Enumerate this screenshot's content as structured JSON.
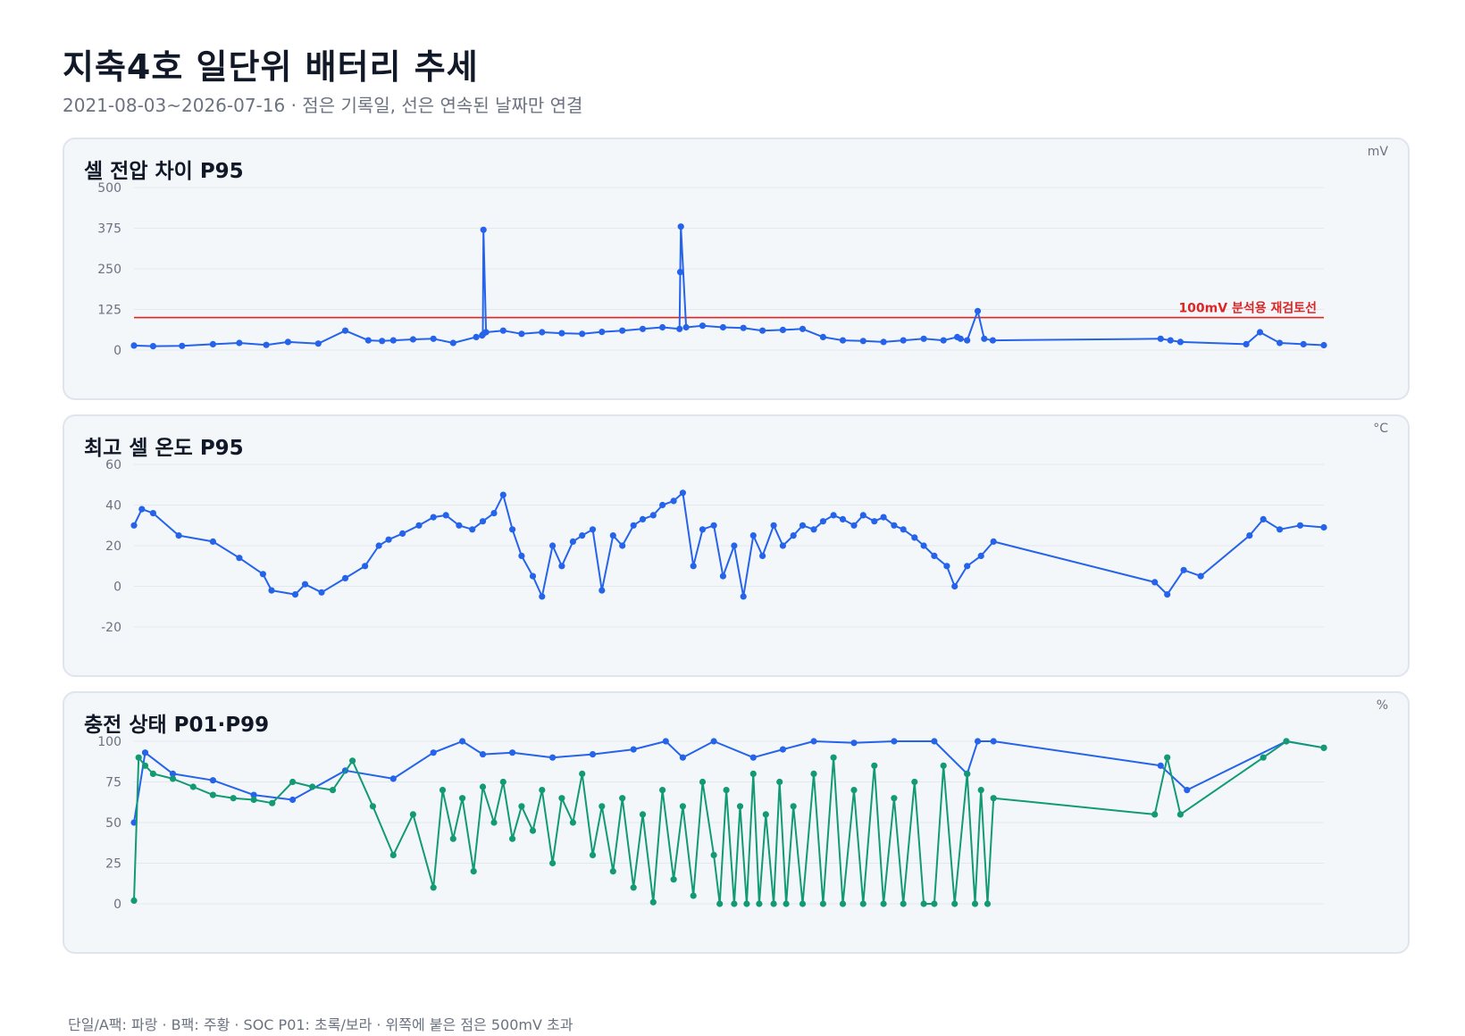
{
  "title": "지축4호 일단위 배터리 추세",
  "subtitle": "2021-08-03~2026-07-16 · 점은 기록일, 선은 연속된 날짜만 연결",
  "footer": "단일/A팩: 파랑 · B팩: 주황 · SOC P01: 초록/보라 · 위쪽에 붙은 점은 500mV 초과",
  "colors": {
    "blue": "#2563eb",
    "green": "#129a74",
    "red": "#dc2626",
    "grid": "#e3e8ee",
    "tick": "#6b7280"
  },
  "chart_data": [
    {
      "type": "line",
      "title": "셀 전압 차이 P95",
      "unit": "mV",
      "x_range": [
        "2021-08-03",
        "2026-07-16"
      ],
      "ylim": [
        0,
        500
      ],
      "yticks": [
        "0",
        "125",
        "250",
        "375",
        "500"
      ],
      "threshold": {
        "value": 100,
        "label": "100mV 분석용 재검토선"
      },
      "series": [
        {
          "color": "#2563eb",
          "x": [
            "2021-08-03",
            "2021-09-01",
            "2021-10-15",
            "2021-12-01",
            "2022-01-10",
            "2022-02-20",
            "2022-03-25",
            "2022-05-10",
            "2022-06-20",
            "2022-07-25",
            "2022-08-15",
            "2022-09-01",
            "2022-10-01",
            "2022-11-01",
            "2022-12-01",
            "2023-01-05",
            "2023-01-14",
            "2023-01-15",
            "2023-01-16",
            "2023-01-20",
            "2023-02-15",
            "2023-03-15",
            "2023-04-15",
            "2023-05-15",
            "2023-06-15",
            "2023-07-15",
            "2023-08-15",
            "2023-09-15",
            "2023-10-15",
            "2023-11-10",
            "2023-11-11",
            "2023-11-12",
            "2023-11-20",
            "2023-12-15",
            "2024-01-15",
            "2024-02-15",
            "2024-03-15",
            "2024-04-15",
            "2024-05-15",
            "2024-06-15",
            "2024-07-15",
            "2024-08-15",
            "2024-09-15",
            "2024-10-15",
            "2024-11-15",
            "2024-12-15",
            "2025-01-05",
            "2025-01-10",
            "2025-01-20",
            "2025-02-05",
            "2025-02-15",
            "2025-02-28",
            "2025-11-10",
            "2025-11-25",
            "2025-12-10",
            "2026-03-20",
            "2026-04-10",
            "2026-05-10",
            "2026-06-15",
            "2026-07-16"
          ],
          "y": [
            14,
            12,
            13,
            18,
            22,
            16,
            25,
            20,
            60,
            30,
            28,
            30,
            33,
            35,
            22,
            40,
            45,
            48,
            370,
            55,
            60,
            50,
            55,
            52,
            50,
            56,
            60,
            65,
            70,
            65,
            240,
            380,
            70,
            75,
            70,
            68,
            60,
            62,
            65,
            40,
            30,
            28,
            25,
            30,
            35,
            30,
            40,
            35,
            30,
            120,
            35,
            30,
            35,
            30,
            25,
            18,
            55,
            22,
            18,
            15
          ]
        }
      ]
    },
    {
      "type": "line",
      "title": "최고 셀 온도 P95",
      "unit": "°C",
      "x_range": [
        "2021-08-03",
        "2026-07-16"
      ],
      "ylim": [
        -20,
        60
      ],
      "yticks": [
        "-20",
        "0",
        "20",
        "40",
        "60"
      ],
      "series": [
        {
          "color": "#2563eb",
          "x": [
            "2021-08-03",
            "2021-08-15",
            "2021-09-01",
            "2021-10-10",
            "2021-12-01",
            "2022-01-10",
            "2022-02-15",
            "2022-02-28",
            "2022-04-05",
            "2022-04-20",
            "2022-05-15",
            "2022-06-20",
            "2022-07-20",
            "2022-08-10",
            "2022-08-25",
            "2022-09-15",
            "2022-10-10",
            "2022-11-01",
            "2022-11-20",
            "2022-12-10",
            "2022-12-30",
            "2023-01-15",
            "2023-02-01",
            "2023-02-15",
            "2023-03-01",
            "2023-03-15",
            "2023-04-01",
            "2023-04-15",
            "2023-05-01",
            "2023-05-15",
            "2023-06-01",
            "2023-06-15",
            "2023-07-01",
            "2023-07-15",
            "2023-08-01",
            "2023-08-15",
            "2023-09-01",
            "2023-09-15",
            "2023-10-01",
            "2023-10-15",
            "2023-11-01",
            "2023-11-15",
            "2023-12-01",
            "2023-12-15",
            "2024-01-01",
            "2024-01-15",
            "2024-02-01",
            "2024-02-15",
            "2024-03-01",
            "2024-03-15",
            "2024-04-01",
            "2024-04-15",
            "2024-05-01",
            "2024-05-15",
            "2024-06-01",
            "2024-06-15",
            "2024-07-01",
            "2024-07-15",
            "2024-08-01",
            "2024-08-15",
            "2024-09-01",
            "2024-09-15",
            "2024-10-01",
            "2024-10-15",
            "2024-11-01",
            "2024-11-15",
            "2024-12-01",
            "2024-12-20",
            "2025-01-01",
            "2025-01-20",
            "2025-02-10",
            "2025-03-01",
            "2025-11-01",
            "2025-11-20",
            "2025-12-15",
            "2026-01-10",
            "2026-03-25",
            "2026-04-15",
            "2026-05-10",
            "2026-06-10",
            "2026-07-16"
          ],
          "y": [
            30,
            38,
            36,
            25,
            22,
            14,
            6,
            -2,
            -4,
            1,
            -3,
            4,
            10,
            20,
            23,
            26,
            30,
            34,
            35,
            30,
            28,
            32,
            36,
            45,
            28,
            15,
            5,
            -5,
            20,
            10,
            22,
            25,
            28,
            -2,
            25,
            20,
            30,
            33,
            35,
            40,
            42,
            46,
            10,
            28,
            30,
            5,
            20,
            -5,
            25,
            15,
            30,
            20,
            25,
            30,
            28,
            32,
            35,
            33,
            30,
            35,
            32,
            34,
            30,
            28,
            24,
            20,
            15,
            10,
            0,
            10,
            15,
            22,
            2,
            -4,
            8,
            5,
            25,
            33,
            28,
            30,
            29
          ]
        }
      ]
    },
    {
      "type": "line",
      "title": "충전 상태 P01·P99",
      "unit": "%",
      "x_range": [
        "2021-08-03",
        "2026-07-16"
      ],
      "ylim": [
        0,
        100
      ],
      "yticks": [
        "0",
        "25",
        "50",
        "75",
        "100"
      ],
      "series": [
        {
          "name": "P99",
          "color": "#2563eb",
          "x": [
            "2021-08-03",
            "2021-08-20",
            "2021-10-01",
            "2021-12-01",
            "2022-02-01",
            "2022-04-01",
            "2022-06-20",
            "2022-09-01",
            "2022-11-01",
            "2022-12-15",
            "2023-01-15",
            "2023-03-01",
            "2023-05-01",
            "2023-07-01",
            "2023-09-01",
            "2023-10-20",
            "2023-11-15",
            "2024-01-01",
            "2024-03-01",
            "2024-04-15",
            "2024-06-01",
            "2024-08-01",
            "2024-10-01",
            "2024-12-01",
            "2025-01-20",
            "2025-02-05",
            "2025-03-01",
            "2025-11-10",
            "2025-12-20",
            "2026-05-20",
            "2026-07-16"
          ],
          "y": [
            50,
            93,
            80,
            76,
            67,
            64,
            82,
            77,
            93,
            100,
            92,
            93,
            90,
            92,
            95,
            100,
            90,
            100,
            90,
            95,
            100,
            99,
            100,
            100,
            80,
            100,
            100,
            85,
            70,
            100,
            96
          ]
        },
        {
          "name": "P01",
          "color": "#129a74",
          "x": [
            "2021-08-03",
            "2021-08-10",
            "2021-08-20",
            "2021-09-01",
            "2021-10-01",
            "2021-11-01",
            "2021-12-01",
            "2022-01-01",
            "2022-02-01",
            "2022-03-01",
            "2022-04-01",
            "2022-05-01",
            "2022-06-01",
            "2022-07-01",
            "2022-08-01",
            "2022-09-01",
            "2022-10-01",
            "2022-11-01",
            "2022-11-15",
            "2022-12-01",
            "2022-12-15",
            "2023-01-01",
            "2023-01-15",
            "2023-02-01",
            "2023-02-15",
            "2023-03-01",
            "2023-03-15",
            "2023-04-01",
            "2023-04-15",
            "2023-05-01",
            "2023-05-15",
            "2023-06-01",
            "2023-06-15",
            "2023-07-01",
            "2023-07-15",
            "2023-08-01",
            "2023-08-15",
            "2023-09-01",
            "2023-09-15",
            "2023-10-01",
            "2023-10-15",
            "2023-11-01",
            "2023-11-15",
            "2023-12-01",
            "2023-12-15",
            "2024-01-01",
            "2024-01-10",
            "2024-01-20",
            "2024-02-01",
            "2024-02-10",
            "2024-02-20",
            "2024-03-01",
            "2024-03-10",
            "2024-03-20",
            "2024-04-01",
            "2024-04-10",
            "2024-04-20",
            "2024-05-01",
            "2024-05-15",
            "2024-06-01",
            "2024-06-15",
            "2024-07-01",
            "2024-07-15",
            "2024-08-01",
            "2024-08-15",
            "2024-09-01",
            "2024-09-15",
            "2024-10-01",
            "2024-10-15",
            "2024-11-01",
            "2024-11-15",
            "2024-12-01",
            "2024-12-15",
            "2025-01-01",
            "2025-01-20",
            "2025-02-01",
            "2025-02-10",
            "2025-02-20",
            "2025-03-01",
            "2025-11-01",
            "2025-11-20",
            "2025-12-10",
            "2026-04-15",
            "2026-05-20",
            "2026-07-16"
          ],
          "y": [
            2,
            90,
            85,
            80,
            77,
            72,
            67,
            65,
            64,
            62,
            75,
            72,
            70,
            88,
            60,
            30,
            55,
            10,
            70,
            40,
            65,
            20,
            72,
            50,
            75,
            40,
            60,
            45,
            70,
            25,
            65,
            50,
            80,
            30,
            60,
            20,
            65,
            10,
            55,
            1,
            70,
            15,
            60,
            5,
            75,
            30,
            0,
            70,
            0,
            60,
            0,
            80,
            0,
            55,
            0,
            75,
            0,
            60,
            0,
            80,
            0,
            90,
            0,
            70,
            0,
            85,
            0,
            65,
            0,
            75,
            0,
            0,
            85,
            0,
            80,
            0,
            70,
            0,
            65,
            55,
            90,
            55,
            90,
            100,
            96
          ]
        }
      ]
    }
  ]
}
